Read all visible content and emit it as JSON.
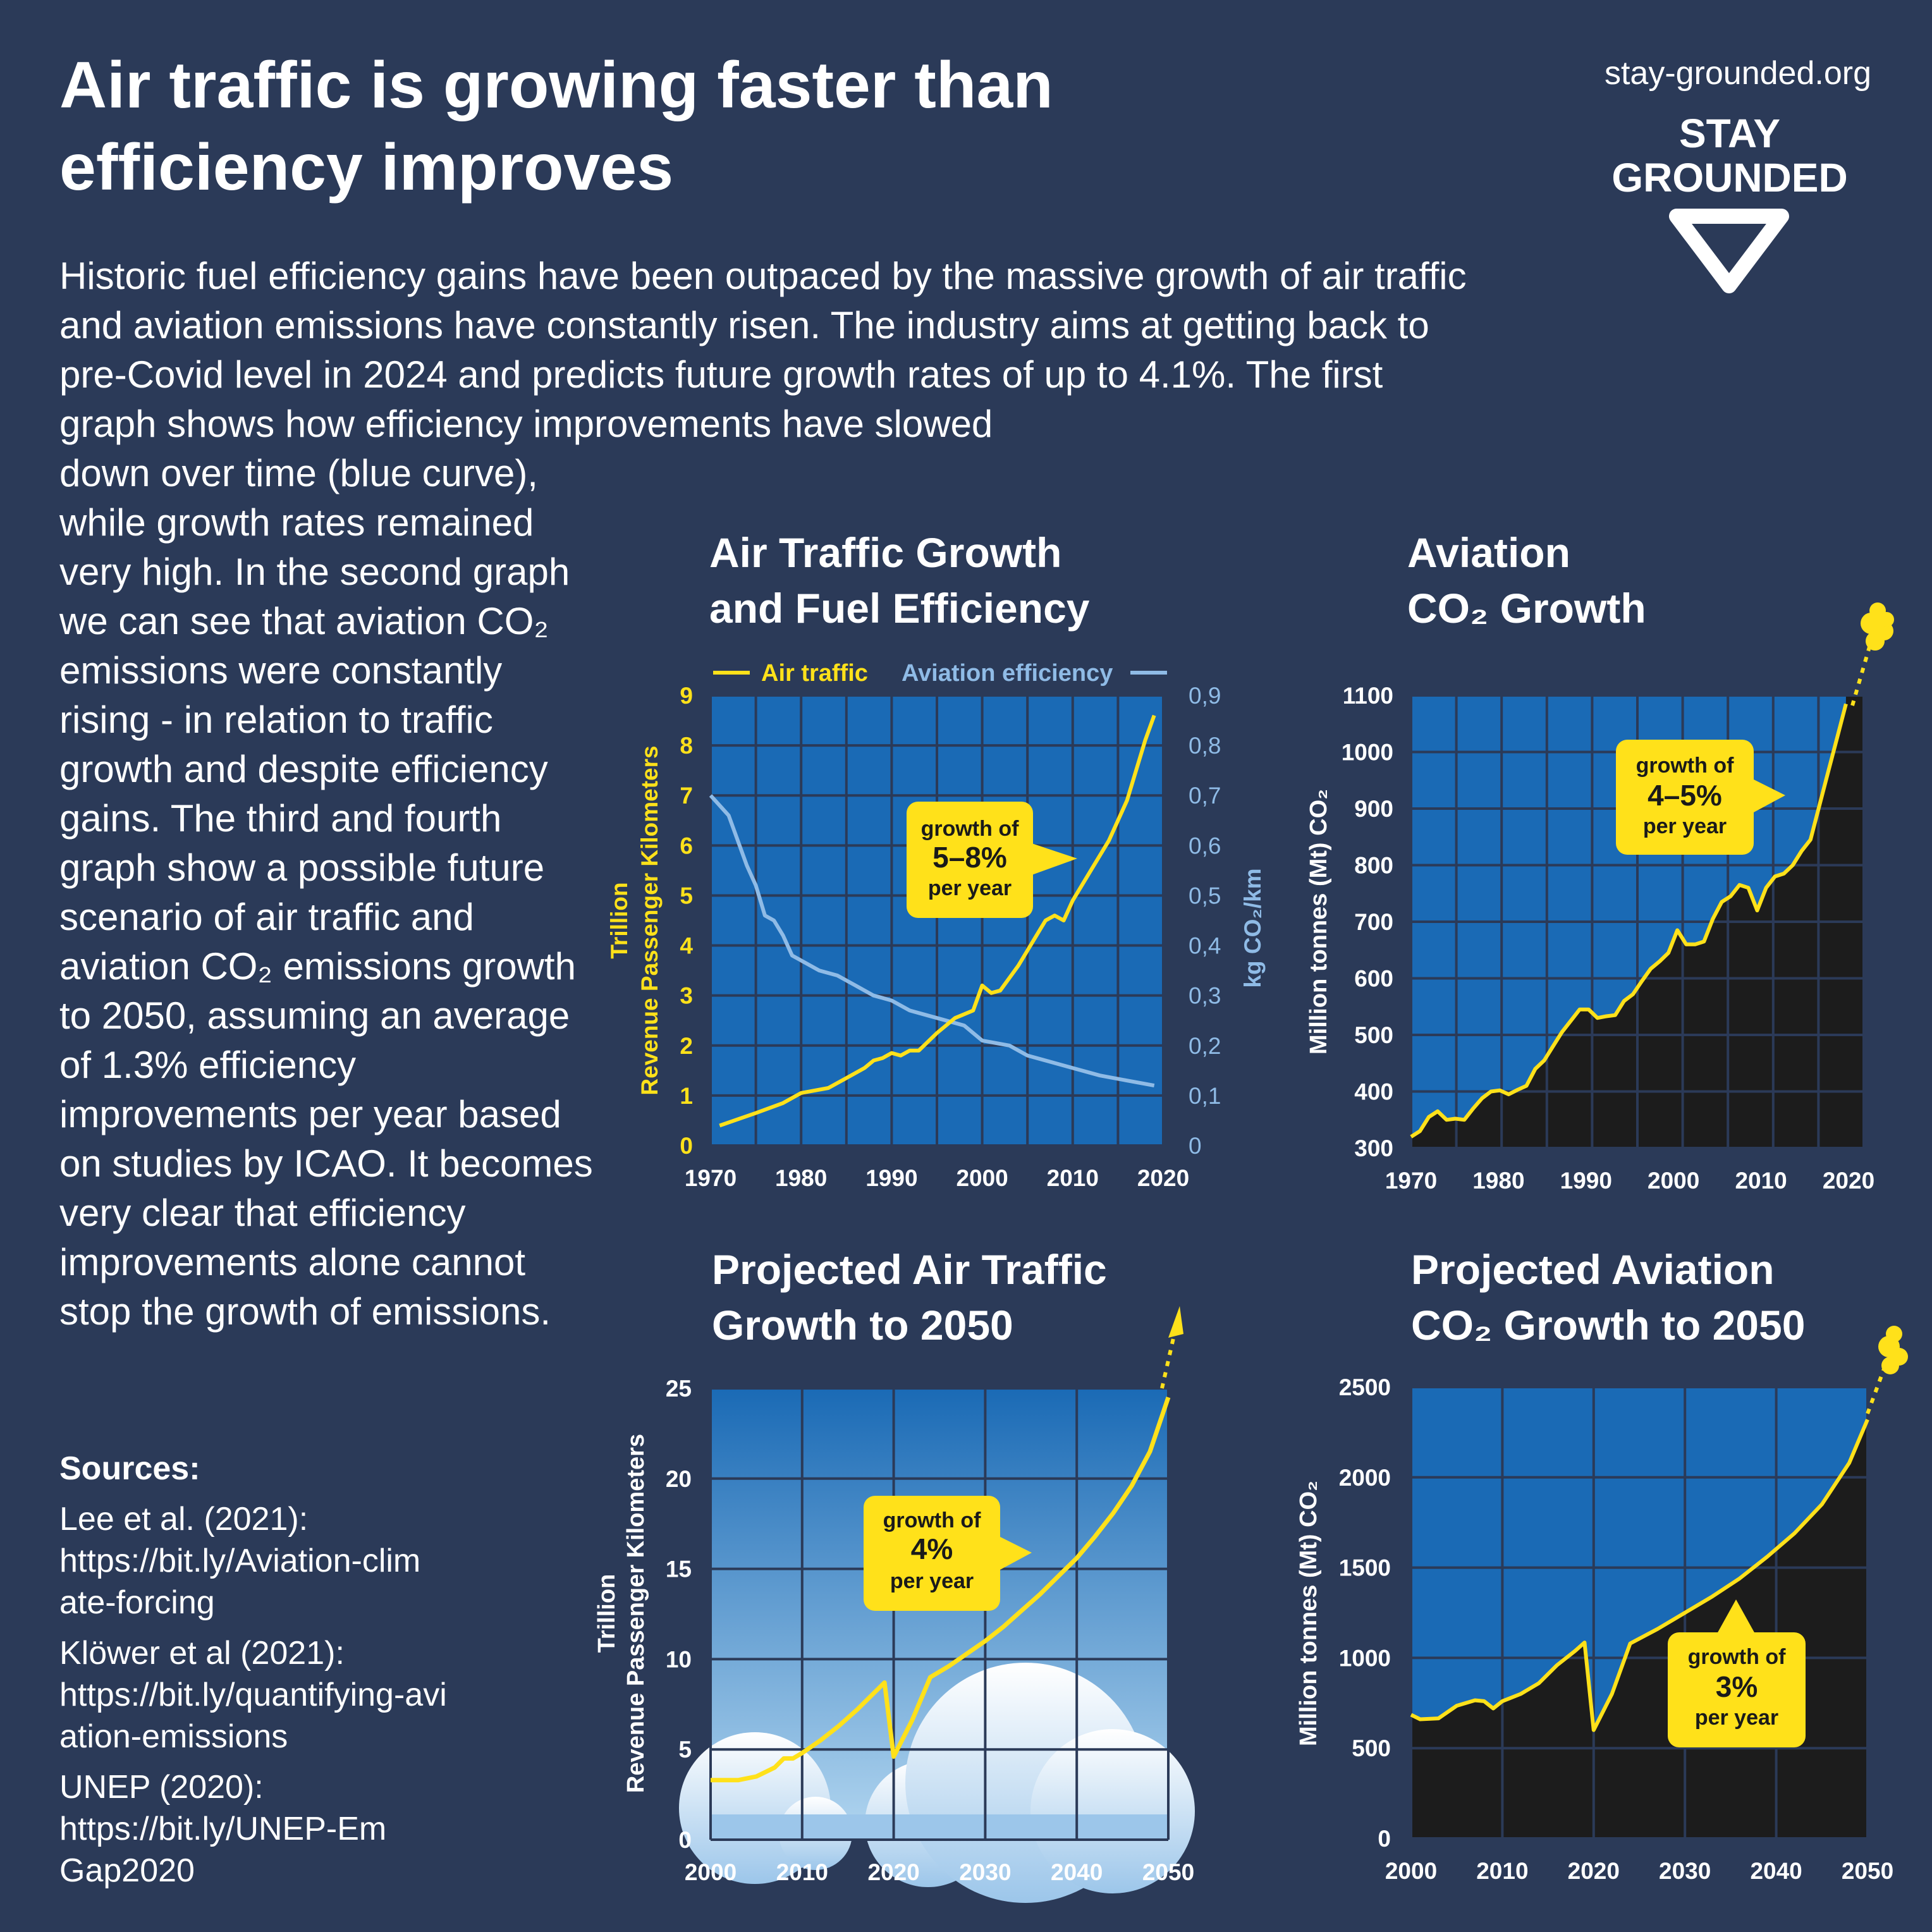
{
  "header": {
    "title": "Air traffic is growing faster than efficiency improves",
    "site": "stay-grounded.org",
    "logo_line1": "STAY",
    "logo_line2": "GROUNDED"
  },
  "intro_text": "Historic fuel efficiency gains have been outpaced by the massive growth of air traffic and aviation emissions have constantly risen. The industry aims at getting back to pre-Covid level in 2024 and predicts future growth rates of up to 4.1%. The first graph shows how efficiency improvements have slowed",
  "side_text": "down over time (blue curve), while growth rates remained very high. In the second graph we can see that aviation CO₂ emissions were constantly rising - in relation to traffic growth and despite efficiency gains. The third and fourth graph show a possible future scenario of air traffic and aviation CO₂ emissions growth to 2050, assuming an average of 1.3% efficiency improvements per year based on studies by ICAO. It becomes very clear that efficiency improvements alone cannot stop the growth of emissions.",
  "sources": {
    "heading": "Sources:",
    "items": [
      {
        "label": "Lee et al. (2021):",
        "url": "https://bit.ly/Aviation-climate-forcing"
      },
      {
        "label": "Klöwer et al (2021):",
        "url": "https://bit.ly/quantifying-aviation-emissions"
      },
      {
        "label": "UNEP (2020):",
        "url": "https://bit.ly/UNEP-EmGap2020"
      }
    ]
  },
  "colors": {
    "background": "#2b3a58",
    "plot_blue": "#1a6ab5",
    "yellow": "#ffe11a",
    "light_blue": "#8fbbe6",
    "emissions_fill": "#1c1c1c"
  },
  "chart_data": [
    {
      "type": "line",
      "title_line1": "Air Traffic Growth",
      "title_line2": "and Fuel Efficiency",
      "legend": {
        "traffic": "Air traffic",
        "efficiency": "Aviation efficiency"
      },
      "ylabel_left_1": "Trillion",
      "ylabel_left_2": "Revenue Passenger Kilometers",
      "ylabel_right": "kg CO₂/km",
      "xlim": [
        1970,
        2020
      ],
      "ylim_left": [
        0,
        9
      ],
      "ylim_right": [
        0,
        0.9
      ],
      "x_ticks": [
        "1970",
        "1980",
        "1990",
        "2000",
        "2010",
        "2020"
      ],
      "y_ticks_left": [
        "0",
        "1",
        "2",
        "3",
        "4",
        "5",
        "6",
        "7",
        "8",
        "9"
      ],
      "y_ticks_right": [
        "0",
        "0,1",
        "0,2",
        "0,3",
        "0,4",
        "0,5",
        "0,6",
        "0,7",
        "0,8",
        "0,9"
      ],
      "annotation": {
        "top": "growth of",
        "big": "5–8%",
        "bottom": "per year"
      },
      "series": [
        {
          "name": "Air traffic",
          "x": [
            1971,
            1975,
            1978,
            1980,
            1983,
            1985,
            1987,
            1988,
            1989,
            1990,
            1991,
            1992,
            1993,
            1995,
            1997,
            1999,
            2000,
            2001,
            2002,
            2004,
            2005,
            2006,
            2007,
            2008,
            2009,
            2010,
            2012,
            2014,
            2016,
            2018,
            2019
          ],
          "y": [
            0.4,
            0.65,
            0.85,
            1.05,
            1.15,
            1.35,
            1.55,
            1.7,
            1.75,
            1.85,
            1.8,
            1.9,
            1.9,
            2.25,
            2.55,
            2.7,
            3.2,
            3.05,
            3.1,
            3.6,
            3.9,
            4.2,
            4.5,
            4.6,
            4.5,
            4.9,
            5.5,
            6.1,
            6.9,
            8.1,
            8.6
          ]
        },
        {
          "name": "Aviation efficiency",
          "x": [
            1970,
            1972,
            1974,
            1975,
            1976,
            1977,
            1978,
            1979,
            1980,
            1982,
            1984,
            1986,
            1988,
            1990,
            1992,
            1994,
            1996,
            1998,
            2000,
            2003,
            2005,
            2007,
            2010,
            2013,
            2016,
            2019
          ],
          "y": [
            0.7,
            0.66,
            0.56,
            0.52,
            0.46,
            0.45,
            0.42,
            0.38,
            0.37,
            0.35,
            0.34,
            0.32,
            0.3,
            0.29,
            0.27,
            0.26,
            0.25,
            0.24,
            0.21,
            0.2,
            0.18,
            0.17,
            0.155,
            0.14,
            0.13,
            0.12
          ]
        }
      ]
    },
    {
      "type": "area",
      "title_line1": "Aviation",
      "title_line2": "CO₂ Growth",
      "ylabel": "Million tonnes (Mt) CO₂",
      "xlim": [
        1970,
        2020
      ],
      "ylim": [
        300,
        1100
      ],
      "x_ticks": [
        "1970",
        "1980",
        "1990",
        "2000",
        "2010",
        "2020"
      ],
      "y_ticks": [
        "300",
        "400",
        "500",
        "600",
        "700",
        "800",
        "900",
        "1000",
        "1100"
      ],
      "annotation": {
        "top": "growth of",
        "big": "4–5%",
        "bottom": "per year"
      },
      "x": [
        1970,
        1971,
        1972,
        1973,
        1974,
        1975,
        1976,
        1977,
        1978,
        1979,
        1980,
        1981,
        1982,
        1983,
        1984,
        1985,
        1986,
        1987,
        1988,
        1989,
        1990,
        1991,
        1992,
        1993,
        1994,
        1995,
        1996,
        1997,
        1998,
        1999,
        2000,
        2001,
        2002,
        2003,
        2004,
        2005,
        2006,
        2007,
        2008,
        2009,
        2010,
        2011,
        2012,
        2013,
        2014,
        2015,
        2016,
        2017,
        2018,
        2019
      ],
      "values": [
        320,
        330,
        355,
        365,
        350,
        352,
        350,
        370,
        388,
        400,
        402,
        395,
        403,
        410,
        440,
        455,
        480,
        505,
        525,
        545,
        545,
        530,
        533,
        535,
        560,
        572,
        595,
        617,
        630,
        645,
        685,
        660,
        660,
        665,
        705,
        735,
        745,
        765,
        760,
        720,
        760,
        780,
        785,
        800,
        825,
        845,
        905,
        965,
        1025,
        1085
      ]
    },
    {
      "type": "line",
      "title_line1": "Projected Air Traffic",
      "title_line2": "Growth to 2050",
      "ylabel_1": "Trillion",
      "ylabel_2": "Revenue Passenger Kilometers",
      "xlim": [
        2000,
        2050
      ],
      "ylim": [
        0,
        25
      ],
      "x_ticks": [
        "2000",
        "2010",
        "2020",
        "2030",
        "2040",
        "2050"
      ],
      "y_ticks": [
        "0",
        "5",
        "10",
        "15",
        "20",
        "25"
      ],
      "annotation": {
        "top": "growth of",
        "big": "4%",
        "bottom": "per year"
      },
      "x": [
        2000,
        2003,
        2005,
        2007,
        2008,
        2009,
        2010,
        2012,
        2014,
        2016,
        2019,
        2020,
        2022,
        2024,
        2026,
        2028,
        2030,
        2032,
        2034,
        2036,
        2038,
        2040,
        2042,
        2044,
        2046,
        2048,
        2050
      ],
      "values": [
        3.3,
        3.3,
        3.5,
        4.0,
        4.5,
        4.5,
        4.8,
        5.5,
        6.3,
        7.2,
        8.7,
        4.6,
        6.6,
        9.0,
        9.6,
        10.3,
        11.0,
        11.8,
        12.7,
        13.6,
        14.6,
        15.6,
        16.8,
        18.1,
        19.6,
        21.5,
        24.5
      ]
    },
    {
      "type": "area",
      "title_line1": "Projected Aviation",
      "title_line2": "CO₂ Growth to 2050",
      "ylabel": "Million tonnes (Mt) CO₂",
      "xlim": [
        2000,
        2050
      ],
      "ylim": [
        0,
        2500
      ],
      "x_ticks": [
        "2000",
        "2010",
        "2020",
        "2030",
        "2040",
        "2050"
      ],
      "y_ticks": [
        "0",
        "500",
        "1000",
        "1500",
        "2000",
        "2500"
      ],
      "annotation": {
        "top": "growth of",
        "big": "3%",
        "bottom": "per year"
      },
      "x": [
        2000,
        2001,
        2003,
        2005,
        2007,
        2008,
        2009,
        2010,
        2012,
        2014,
        2016,
        2018,
        2019,
        2020,
        2022,
        2024,
        2027,
        2030,
        2033,
        2036,
        2039,
        2042,
        2045,
        2048,
        2050
      ],
      "values": [
        685,
        660,
        665,
        735,
        765,
        760,
        720,
        760,
        800,
        860,
        960,
        1040,
        1085,
        600,
        800,
        1080,
        1160,
        1250,
        1340,
        1440,
        1560,
        1690,
        1850,
        2080,
        2320
      ]
    }
  ]
}
